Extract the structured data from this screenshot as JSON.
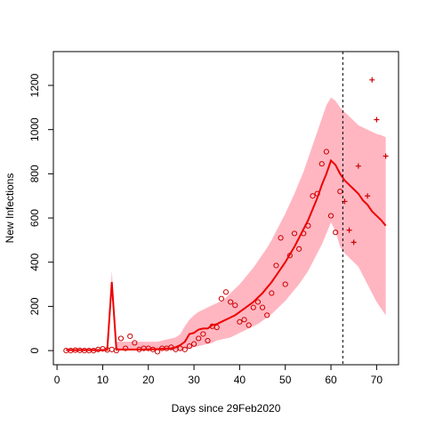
{
  "chart_data": {
    "type": "line",
    "xlabel": "Days since 29Feb2020",
    "ylabel": "New Infections",
    "xlim": [
      -0.8,
      74.8
    ],
    "ylim": [
      -64,
      1353
    ],
    "xticks": [
      0,
      10,
      20,
      30,
      40,
      50,
      60,
      70
    ],
    "yticks": [
      0,
      200,
      400,
      600,
      800,
      1000,
      1200
    ],
    "band": {
      "color": "#ffb6c1",
      "x": [
        2,
        3,
        4,
        5,
        6,
        7,
        8,
        9,
        10,
        11,
        12,
        13,
        14,
        15,
        16,
        17,
        18,
        19,
        20,
        21,
        22,
        23,
        24,
        25,
        26,
        27,
        28,
        29,
        30,
        31,
        32,
        33,
        34,
        35,
        36,
        37,
        38,
        39,
        40,
        41,
        42,
        43,
        44,
        45,
        46,
        47,
        48,
        49,
        50,
        51,
        52,
        53,
        54,
        55,
        56,
        57,
        58,
        59,
        60,
        61,
        62,
        63,
        64,
        65,
        66,
        67,
        68,
        69,
        70,
        71,
        72
      ],
      "lower": [
        0,
        0,
        0,
        0,
        0,
        0,
        0,
        0,
        0,
        0,
        260,
        0,
        0,
        0,
        0,
        0,
        0,
        0,
        0,
        0,
        0,
        0,
        0,
        0,
        0,
        0,
        5,
        10,
        15,
        20,
        25,
        30,
        35,
        45,
        50,
        55,
        60,
        70,
        80,
        90,
        100,
        110,
        120,
        135,
        150,
        165,
        185,
        205,
        225,
        250,
        275,
        300,
        330,
        360,
        400,
        440,
        480,
        530,
        580,
        540,
        470,
        440,
        420,
        400,
        380,
        340,
        300,
        260,
        220,
        190,
        160
      ],
      "upper": [
        10,
        10,
        10,
        10,
        10,
        10,
        10,
        10,
        10,
        10,
        360,
        40,
        40,
        40,
        40,
        40,
        40,
        40,
        40,
        40,
        40,
        45,
        50,
        55,
        60,
        75,
        110,
        140,
        160,
        175,
        185,
        195,
        205,
        215,
        225,
        240,
        260,
        280,
        300,
        325,
        350,
        375,
        405,
        435,
        465,
        500,
        540,
        580,
        620,
        665,
        710,
        760,
        810,
        870,
        930,
        990,
        1050,
        1110,
        1145,
        1130,
        1100,
        1080,
        1060,
        1040,
        1020,
        1010,
        1000,
        990,
        980,
        975,
        965
      ]
    },
    "line": {
      "color": "#ee0000",
      "x": [
        2,
        3,
        4,
        5,
        6,
        7,
        8,
        9,
        10,
        11,
        12,
        13,
        14,
        15,
        16,
        17,
        18,
        19,
        20,
        21,
        22,
        23,
        24,
        25,
        26,
        27,
        28,
        29,
        30,
        31,
        32,
        33,
        34,
        35,
        36,
        37,
        38,
        39,
        40,
        41,
        42,
        43,
        44,
        45,
        46,
        47,
        48,
        49,
        50,
        51,
        52,
        53,
        54,
        55,
        56,
        57,
        58,
        59,
        60,
        61,
        62,
        63,
        64,
        65,
        66,
        67,
        68,
        69,
        70,
        71,
        72
      ],
      "values": [
        2,
        2,
        2,
        2,
        2,
        2,
        2,
        2,
        2,
        3,
        310,
        5,
        5,
        5,
        5,
        5,
        5,
        5,
        6,
        6,
        7,
        8,
        9,
        10,
        15,
        25,
        40,
        75,
        80,
        95,
        100,
        100,
        115,
        120,
        130,
        140,
        150,
        160,
        175,
        190,
        205,
        220,
        240,
        260,
        285,
        310,
        340,
        370,
        400,
        435,
        470,
        510,
        550,
        590,
        640,
        690,
        750,
        800,
        860,
        840,
        800,
        770,
        750,
        730,
        710,
        680,
        660,
        630,
        610,
        590,
        565
      ]
    },
    "points": [
      {
        "marker": "circle",
        "color": "#cc0000",
        "x": [
          2,
          3,
          4,
          5,
          6,
          7,
          8,
          9,
          10,
          11,
          12,
          13,
          14,
          15,
          16,
          17,
          18,
          19,
          20,
          21,
          22,
          23,
          24,
          25,
          26,
          27,
          28,
          29,
          30,
          31,
          32,
          33,
          34,
          35,
          36,
          37,
          38,
          39,
          40,
          41,
          42,
          43,
          44,
          45,
          46,
          47,
          48,
          49,
          50,
          51,
          52,
          53,
          54,
          55,
          56,
          57,
          58,
          59,
          60,
          61,
          62
        ],
        "values": [
          0,
          0,
          2,
          1,
          0,
          0,
          0,
          5,
          8,
          3,
          5,
          0,
          55,
          10,
          65,
          35,
          5,
          10,
          10,
          5,
          -5,
          10,
          10,
          15,
          5,
          10,
          5,
          20,
          30,
          55,
          75,
          45,
          110,
          105,
          235,
          265,
          220,
          205,
          130,
          140,
          115,
          195,
          220,
          195,
          160,
          260,
          385,
          510,
          300,
          430,
          530,
          460,
          530,
          565,
          700,
          710,
          845,
          900,
          610,
          535,
          720
        ]
      },
      {
        "marker": "plus",
        "color": "#cc0000",
        "x": [
          63,
          64,
          65,
          66,
          68,
          69,
          70,
          72
        ],
        "values": [
          675,
          545,
          490,
          835,
          700,
          1225,
          1045,
          880
        ]
      }
    ],
    "vline": 62.6
  }
}
